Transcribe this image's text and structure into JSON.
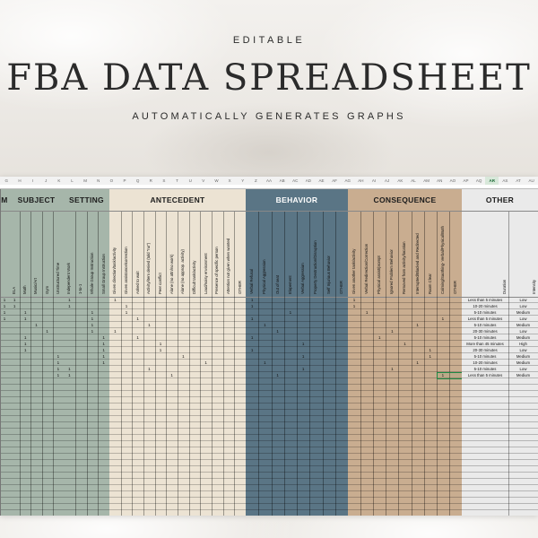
{
  "title_block": {
    "eyebrow": "EDITABLE",
    "headline": "FBA DATA SPREADSHEET",
    "tagline": "AUTOMATICALLY GENERATES GRAPHS"
  },
  "colors": {
    "m": "#a6b6aa",
    "subject": "#a6b6aa",
    "setting": "#a6b6aa",
    "antecedent": "#ece3d3",
    "behavior": "#5a7585",
    "consequence": "#c9ad90",
    "other": "#eaeaea",
    "selection": "#1f8a45"
  },
  "column_letters": [
    "G",
    "H",
    "I",
    "J",
    "K",
    "L",
    "M",
    "N",
    "O",
    "P",
    "Q",
    "R",
    "S",
    "T",
    "U",
    "V",
    "W",
    "X",
    "Y",
    "Z",
    "AA",
    "AB",
    "AC",
    "AD",
    "AE",
    "AF",
    "AG",
    "AH",
    "AI",
    "AJ",
    "AK",
    "AL",
    "AM",
    "AN",
    "AO",
    "AP",
    "AQ",
    "AR",
    "AS",
    "AT",
    "AU"
  ],
  "active_column": "AR",
  "bands": [
    {
      "key": "m",
      "label": "M",
      "subs": [
        ""
      ]
    },
    {
      "key": "subject",
      "label": "SUBJECT",
      "subs": [
        "ELA",
        "Math",
        "Music/Art",
        "Gym",
        "Unstructured Time"
      ]
    },
    {
      "key": "setting",
      "label": "SETTING",
      "subs": [
        "Independent Work",
        "1-to-1",
        "Whole Group Instruction",
        "Small Group Instruction"
      ]
    },
    {
      "key": "antecedent",
      "label": "ANTECEDENT",
      "subs": [
        "Given direction/task/activity",
        "Given assistance/correction",
        "Asked to wait",
        "Activity/item denied (told \"no\")",
        "Peer conflict",
        "Alone (no attn/no work)",
        "Alone (no approp. activity)",
        "Difficult task/activity",
        "Loud/noisy environment",
        "Presence of specific person",
        "Attention not given when wanted",
        "OTHER"
      ]
    },
    {
      "key": "behavior",
      "label": "BEHAVIOR",
      "subs": [
        "Verbal Refusal",
        "Physical Aggression",
        "Out of seat",
        "Elopement",
        "Verbal Aggression",
        "Property Destruction/Disruption",
        "Self Injurious Behavior",
        "OTHER"
      ]
    },
    {
      "key": "consequence",
      "label": "CONSEQUENCE",
      "subs": [
        "Given another task/activity",
        "Verbal Redirection/Correction",
        "Physical assist/prompt",
        "Ignored Problem Behavior",
        "Removed from activity/location",
        "Interrupted/Blocked and Redirected",
        "Room Clear",
        "Calming/Soothing- Verbal/Physical/Both",
        "OTHER"
      ]
    },
    {
      "key": "other",
      "label": "OTHER",
      "subs": [
        "Duration",
        "Intensity"
      ]
    }
  ],
  "rows": [
    {
      "subject": 0,
      "setting": 0,
      "antecedent": 0,
      "behavior": 0,
      "consequence": 0,
      "duration": "Less than 5 minutes",
      "intensity": "Low"
    },
    {
      "subject": 0,
      "setting": 0,
      "antecedent": 1,
      "behavior": 0,
      "consequence": 0,
      "duration": "10-20 minutes",
      "intensity": "Low"
    },
    {
      "subject": 1,
      "setting": 2,
      "antecedent": 1,
      "behavior": 3,
      "consequence": 1,
      "duration": "5-10 minutes",
      "intensity": "Medium"
    },
    {
      "subject": 1,
      "setting": 2,
      "antecedent": 2,
      "behavior": 0,
      "consequence": 7,
      "duration": "Less than 5 minutes",
      "intensity": "Low"
    },
    {
      "subject": 2,
      "setting": 2,
      "antecedent": 3,
      "behavior": 1,
      "consequence": 5,
      "duration": "5-10 minutes",
      "intensity": "Medium"
    },
    {
      "subject": 3,
      "setting": 2,
      "antecedent": 0,
      "behavior": 2,
      "consequence": 3,
      "duration": "20-30 minutes",
      "intensity": "Low"
    },
    {
      "subject": 1,
      "setting": 3,
      "antecedent": 2,
      "behavior": 0,
      "consequence": 2,
      "duration": "5-10 minutes",
      "intensity": "Medium"
    },
    {
      "subject": 1,
      "setting": 3,
      "antecedent": 4,
      "behavior": 4,
      "consequence": 4,
      "duration": "More than 45 minutes",
      "intensity": "High"
    },
    {
      "subject": 1,
      "setting": 3,
      "antecedent": 4,
      "behavior": 0,
      "consequence": 6,
      "duration": "20-30 minutes",
      "intensity": "Low"
    },
    {
      "subject": 4,
      "setting": 3,
      "antecedent": 6,
      "behavior": 4,
      "consequence": 6,
      "duration": "5-10 minutes",
      "intensity": "Medium"
    },
    {
      "subject": 4,
      "setting": 3,
      "antecedent": 8,
      "behavior": 1,
      "consequence": 5,
      "duration": "10-20 minutes",
      "intensity": "Medium"
    },
    {
      "subject": 4,
      "setting": 0,
      "antecedent": 3,
      "behavior": 4,
      "consequence": 3,
      "duration": "5-10 minutes",
      "intensity": "Low"
    },
    {
      "subject": 4,
      "setting": 0,
      "antecedent": 5,
      "behavior": 2,
      "consequence": 7,
      "duration": "Less than 5 minutes",
      "intensity": "Medium"
    }
  ],
  "selected_cell": {
    "band": "consequence",
    "sub": 7,
    "row": 12
  }
}
